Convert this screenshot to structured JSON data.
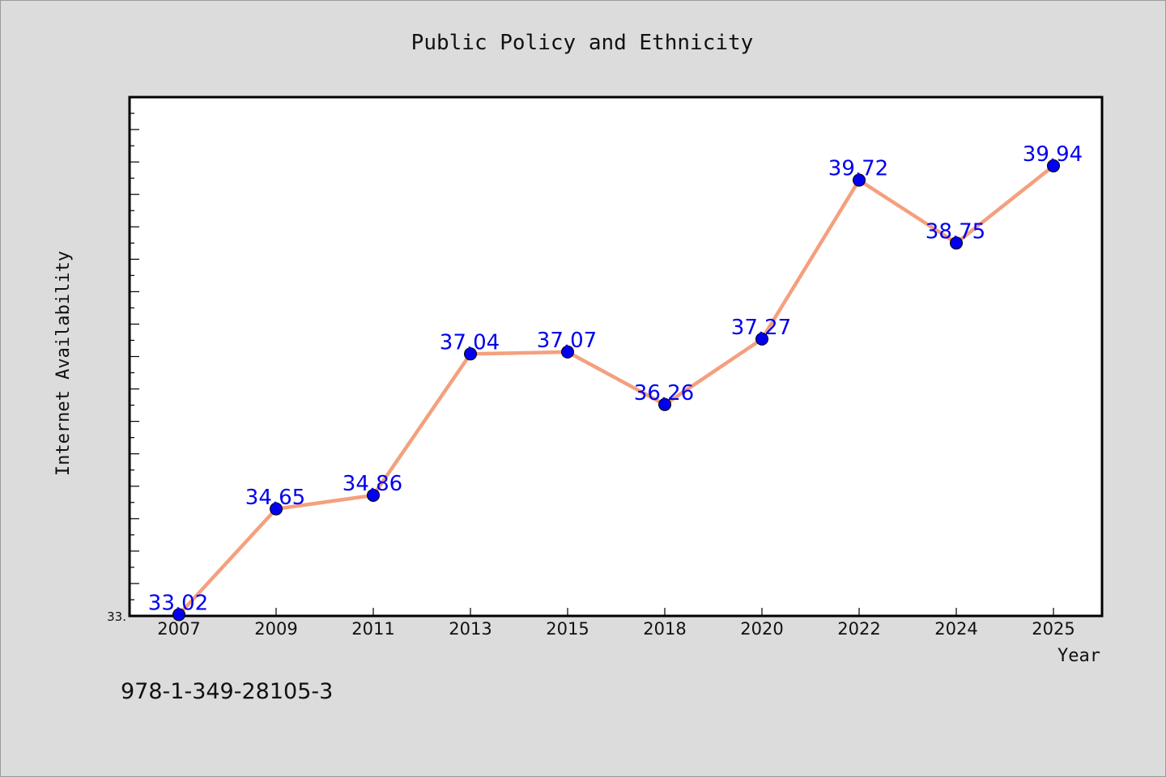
{
  "chart_data": {
    "type": "line",
    "title": "Public Policy and Ethnicity",
    "xlabel": "Year",
    "ylabel": "Internet Availability",
    "categories": [
      "2007",
      "2009",
      "2011",
      "2013",
      "2015",
      "2018",
      "2020",
      "2022",
      "2024",
      "2025"
    ],
    "series": [
      {
        "values": [
          33.02,
          34.65,
          34.86,
          37.04,
          37.07,
          36.26,
          37.27,
          39.72,
          38.75,
          39.94
        ]
      }
    ],
    "data_labels": [
      "33.02",
      "34.65",
      "34.86",
      "37.04",
      "37.07",
      "36.26",
      "37.27",
      "39.72",
      "38.75",
      "39.94"
    ],
    "ylim": [
      33.0,
      41.0
    ],
    "ytick_labels": [
      "33."
    ],
    "grid": false,
    "legend": "none",
    "colors": {
      "line": "#f4a07e",
      "marker": "#0000ee",
      "data_label": "#0000ee",
      "background": "#dcdcdc",
      "plot_area": "#ffffff"
    }
  },
  "footer": {
    "isbn": "978-1-349-28105-3"
  }
}
